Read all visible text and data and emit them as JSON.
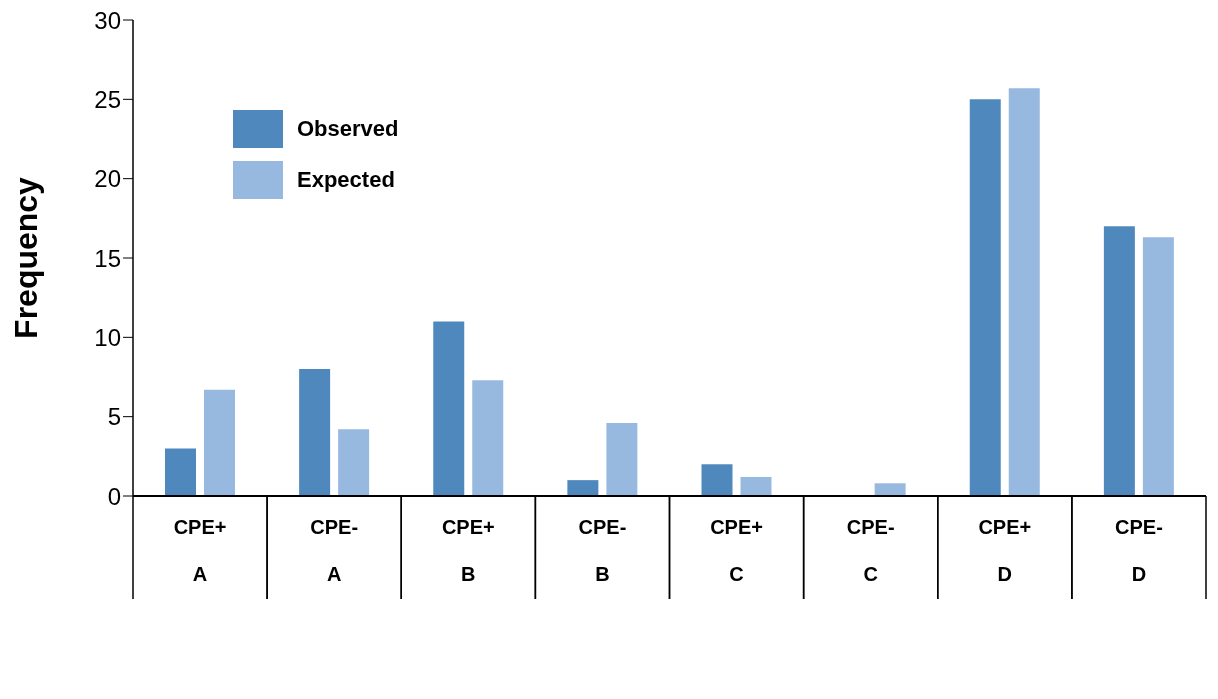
{
  "chart_data": {
    "type": "bar",
    "ylabel": "Frequency",
    "categories": [
      "CPE+\nA",
      "CPE-\nA",
      "CPE+\nB",
      "CPE-\nB",
      "CPE+\nC",
      "CPE-\nC",
      "CPE+\nD",
      "CPE-\nD"
    ],
    "series": [
      {
        "name": "Observed",
        "color": "#4f88bd",
        "values": [
          3,
          8,
          11,
          1,
          2,
          0,
          25,
          17
        ]
      },
      {
        "name": "Expected",
        "color": "#98b9df",
        "values": [
          6.7,
          4.2,
          7.3,
          4.6,
          1.2,
          0.8,
          25.7,
          16.3
        ]
      }
    ],
    "ylim": [
      0,
      30
    ],
    "yticks": [
      0,
      5,
      10,
      15,
      20,
      25,
      30
    ],
    "grid": false,
    "legend": "top left"
  }
}
